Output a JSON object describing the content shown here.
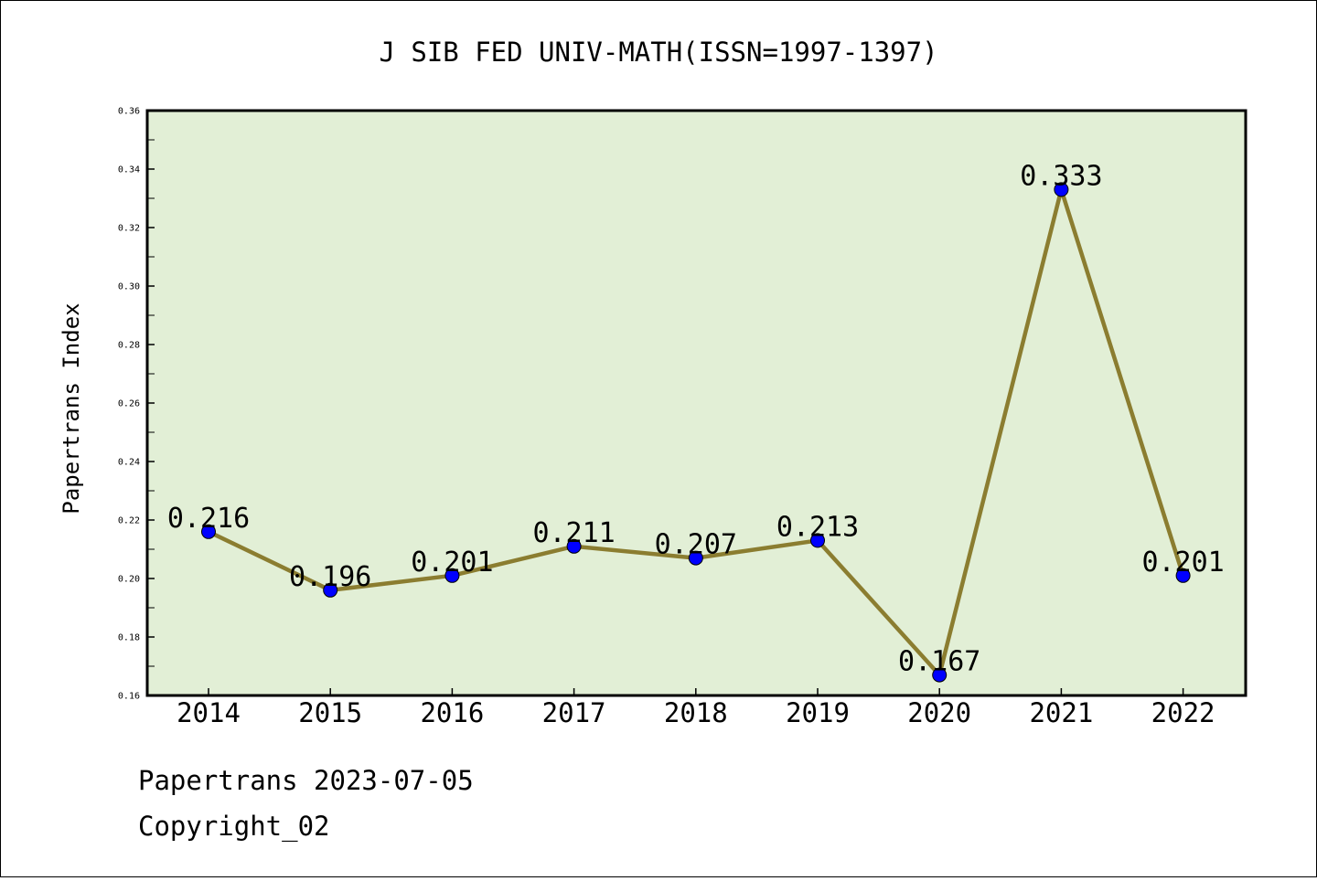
{
  "chart_data": {
    "type": "line",
    "title": "J SIB FED UNIV-MATH(ISSN=1997-1397)",
    "ylabel": "Papertrans Index",
    "xlabel": "",
    "categories": [
      "2014",
      "2015",
      "2016",
      "2017",
      "2018",
      "2019",
      "2020",
      "2021",
      "2022"
    ],
    "series": [
      {
        "values": [
          0.216,
          0.196,
          0.201,
          0.211,
          0.207,
          0.213,
          0.167,
          0.333,
          0.201
        ]
      }
    ],
    "data_labels": [
      "0.216",
      "0.196",
      "0.201",
      "0.211",
      "0.207",
      "0.213",
      "0.167",
      "0.333",
      "0.201"
    ],
    "ylim": [
      0.16,
      0.36
    ],
    "y_ticks": [
      "0.16",
      "0.18",
      "0.20",
      "0.22",
      "0.24",
      "0.26",
      "0.28",
      "0.30",
      "0.32",
      "0.34",
      "0.36"
    ],
    "grid": false,
    "legend": "none",
    "colors": {
      "plot_background": "#e2efd6",
      "line": "#8b7d30",
      "marker": "#0000ff"
    }
  },
  "footer": {
    "source": "Papertrans 2023-07-05",
    "copyright": "Copyright_02"
  }
}
